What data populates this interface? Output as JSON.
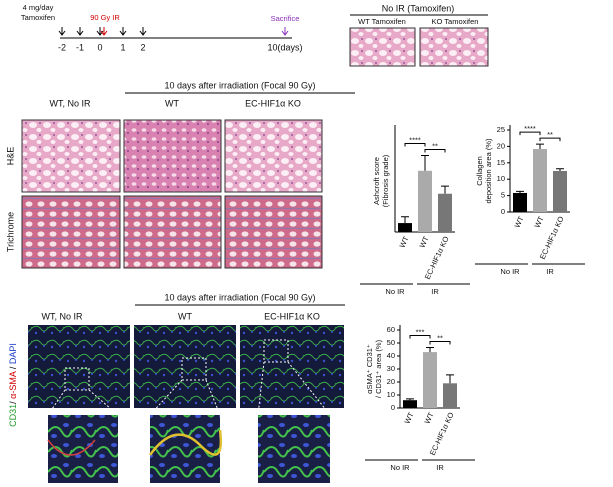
{
  "timeline": {
    "dose": [
      "4 mg/day",
      "Tamoxifen"
    ],
    "ir": "90 Gy IR",
    "sacrifice": "Sacrifice",
    "days": [
      "-2",
      "-1",
      "0",
      "1",
      "2",
      "10(days)"
    ]
  },
  "top_right": {
    "title": "No IR (Tamoxifen)",
    "panels": [
      "WT Tamoxifen",
      "KO Tamoxifen"
    ]
  },
  "histology": {
    "header": "10 days after irradiation (Focal 90 Gy)",
    "columns": [
      "WT, No IR",
      "WT",
      "EC-HIF1α KO"
    ],
    "rows": [
      "H&E",
      "Trichrome"
    ]
  },
  "immunofluorescence": {
    "header": "10 days after irradiation (Focal 90 Gy)",
    "columns": [
      "WT, No IR",
      "WT",
      "EC-HIF1α KO"
    ],
    "stains": [
      "CD31",
      "/ ",
      "α-SMA",
      " / ",
      "DAPI"
    ]
  },
  "chart_data": [
    {
      "type": "bar",
      "ylabel": [
        "Ashcroft score",
        "(Fibrosis grade)"
      ],
      "categories": [
        "WT",
        "WT",
        "EC-HIF1α KO"
      ],
      "values": [
        0.7,
        4.8,
        3.0
      ],
      "errors": [
        0.5,
        1.2,
        0.6
      ],
      "colors": [
        "#000000",
        "#aaaaaa",
        "#777777"
      ],
      "ylim": [
        0,
        8
      ],
      "significance": [
        "****",
        "**"
      ],
      "groups": [
        "No IR",
        "IR"
      ]
    },
    {
      "type": "bar",
      "ylabel": [
        "Collagen",
        "deposition area (%)"
      ],
      "categories": [
        "WT",
        "WT",
        "EC-HIF1α KO"
      ],
      "values": [
        5.8,
        19.2,
        12.5
      ],
      "errors": [
        0.5,
        1.5,
        0.7
      ],
      "colors": [
        "#000000",
        "#aaaaaa",
        "#777777"
      ],
      "ylim": [
        0,
        25
      ],
      "yticks": [
        0,
        5,
        10,
        15,
        20,
        25
      ],
      "significance": [
        "****",
        "**"
      ],
      "groups": [
        "No IR",
        "IR"
      ]
    },
    {
      "type": "bar",
      "ylabel": [
        "αSMA⁺ CD31⁺",
        "/ CD31⁺ area (%)"
      ],
      "categories": [
        "WT",
        "WT",
        "EC-HIF1α KO"
      ],
      "values": [
        6,
        43,
        19
      ],
      "errors": [
        1,
        3.5,
        6.5
      ],
      "colors": [
        "#000000",
        "#aaaaaa",
        "#777777"
      ],
      "ylim": [
        0,
        60
      ],
      "yticks": [
        0,
        10,
        20,
        30,
        40,
        50,
        60
      ],
      "significance": [
        "***",
        "**"
      ],
      "groups": [
        "No IR",
        "IR"
      ]
    }
  ]
}
